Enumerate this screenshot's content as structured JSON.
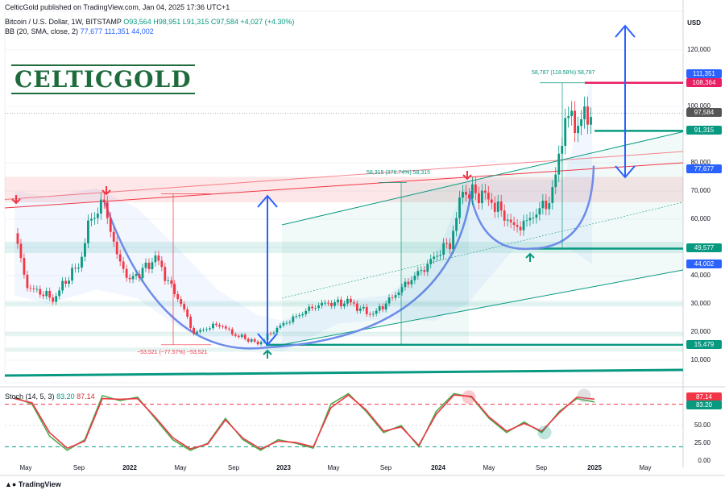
{
  "header": {
    "published": "CelticGold published on TradingView.com, Jan 04, 2025 17:36 UTC+1",
    "symbol_line": "Bitcoin / U.S. Dollar, 1W, BITSTAMP",
    "ohlc": "O93,564 H98,951 L91,315 C97,584 +4,027 (+4.30%)",
    "bb_label": "BB (20, SMA, close, 2)",
    "bb_values": "77,677  111,351  44,002",
    "stoch_label": "Stoch (14, 5, 3)",
    "stoch_k": "83.20",
    "stoch_d": "87.14"
  },
  "logo": "CELTICGOLD",
  "footer": "TradingView",
  "currency": "USD",
  "colors": {
    "up": "#089981",
    "down": "#f23645",
    "bb": "#2962ff",
    "resistance": "#e91e63",
    "support": "#089981",
    "arc": "#6f8ce8",
    "stoch_k": "#4caf50",
    "stoch_d": "#f23645"
  },
  "chart_data": {
    "type": "candlestick",
    "y_ticks": [
      "120,000",
      "100,000",
      "80,000",
      "70,000",
      "60,000",
      "50,000",
      "40,000",
      "30,000",
      "20,000",
      "10,000"
    ],
    "y_tick_values": [
      120000,
      100000,
      80000,
      70000,
      60000,
      50000,
      40000,
      30000,
      20000,
      10000
    ],
    "x_ticks": [
      "May",
      "Sep",
      "2022",
      "May",
      "Sep",
      "2023",
      "May",
      "Sep",
      "2024",
      "May",
      "Sep",
      "2025",
      "May"
    ],
    "price_tags": [
      {
        "label": "111,351",
        "value": 111351,
        "color": "#2962ff"
      },
      {
        "label": "108,364",
        "value": 108364,
        "color": "#e91e63"
      },
      {
        "label": "97,584",
        "value": 97584,
        "color": "#555555"
      },
      {
        "label": "91,315",
        "value": 91315,
        "color": "#089981"
      },
      {
        "label": "77,677",
        "value": 77677,
        "color": "#2962ff"
      },
      {
        "label": "49,577",
        "value": 49577,
        "color": "#089981"
      },
      {
        "label": "44,002",
        "value": 44002,
        "color": "#2962ff"
      },
      {
        "label": "15,479",
        "value": 15479,
        "color": "#089981"
      }
    ],
    "measurements": [
      {
        "label": "58,787 (118.58%) 58,787",
        "color": "#089981"
      },
      {
        "label": "58,315 (376.74%) 58,315",
        "color": "#089981"
      },
      {
        "label": "−53,521 (−77.57%) −53,521",
        "color": "#f23645"
      }
    ],
    "weekly_close_path": [
      {
        "t": "2021-04",
        "price": 55000
      },
      {
        "t": "2021-05",
        "price": 36000
      },
      {
        "t": "2021-07",
        "price": 32000
      },
      {
        "t": "2021-09",
        "price": 44000
      },
      {
        "t": "2021-10",
        "price": 61000
      },
      {
        "t": "2021-11",
        "price": 66000
      },
      {
        "t": "2021-12",
        "price": 47000
      },
      {
        "t": "2022-01",
        "price": 38000
      },
      {
        "t": "2022-03",
        "price": 46000
      },
      {
        "t": "2022-05",
        "price": 30000
      },
      {
        "t": "2022-06",
        "price": 19500
      },
      {
        "t": "2022-08",
        "price": 23000
      },
      {
        "t": "2022-09",
        "price": 19500
      },
      {
        "t": "2022-11",
        "price": 16000
      },
      {
        "t": "2023-01",
        "price": 23000
      },
      {
        "t": "2023-03",
        "price": 28000
      },
      {
        "t": "2023-04",
        "price": 30000
      },
      {
        "t": "2023-06",
        "price": 30500
      },
      {
        "t": "2023-08",
        "price": 26000
      },
      {
        "t": "2023-10",
        "price": 34500
      },
      {
        "t": "2023-12",
        "price": 43000
      },
      {
        "t": "2024-02",
        "price": 52000
      },
      {
        "t": "2024-03",
        "price": 70000
      },
      {
        "t": "2024-05",
        "price": 68000
      },
      {
        "t": "2024-07",
        "price": 57000
      },
      {
        "t": "2024-08",
        "price": 59000
      },
      {
        "t": "2024-10",
        "price": 68000
      },
      {
        "t": "2024-11",
        "price": 96000
      },
      {
        "t": "2024-12",
        "price": 94000
      },
      {
        "t": "2025-01",
        "price": 97584
      }
    ],
    "stoch": {
      "y_ticks": [
        "87.14",
        "83.20",
        "50.00",
        "25.00",
        "0.00"
      ],
      "levels": [
        80,
        20
      ],
      "k_path": [
        90,
        80,
        35,
        15,
        30,
        92,
        85,
        90,
        60,
        30,
        15,
        25,
        60,
        30,
        15,
        30,
        25,
        18,
        80,
        95,
        70,
        40,
        50,
        20,
        70,
        95,
        90,
        60,
        40,
        55,
        40,
        70,
        88,
        83.2
      ],
      "d_path": [
        88,
        82,
        40,
        18,
        28,
        88,
        87,
        88,
        62,
        33,
        17,
        24,
        58,
        32,
        17,
        28,
        26,
        20,
        75,
        93,
        72,
        42,
        48,
        22,
        66,
        93,
        91,
        62,
        42,
        53,
        42,
        68,
        90,
        87.14
      ]
    }
  }
}
